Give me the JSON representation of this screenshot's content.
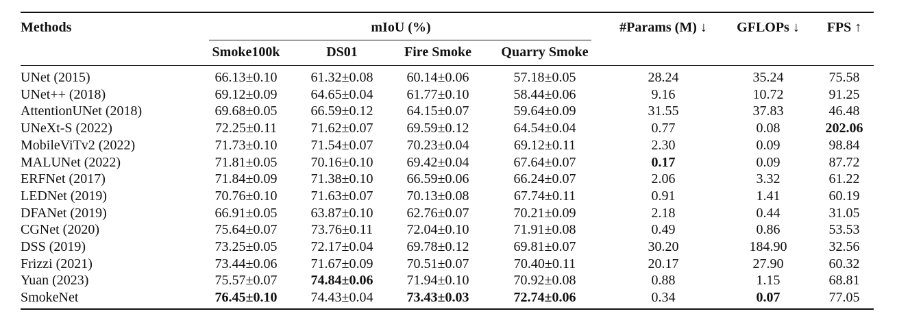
{
  "table": {
    "headers": {
      "methods": "Methods",
      "miou": "mIoU (%)",
      "params": "#Params (M) ↓",
      "gflops": "GFLOPs ↓",
      "fps": "FPS ↑",
      "smoke100k": "Smoke100k",
      "ds01": "DS01",
      "firesmoke": "Fire Smoke",
      "quarrysmoke": "Quarry Smoke"
    },
    "rows": [
      {
        "method": "UNet (2015)",
        "smoke100k": "66.13±0.10",
        "ds01": "61.32±0.08",
        "firesmoke": "60.14±0.06",
        "quarrysmoke": "57.18±0.05",
        "params": "28.24",
        "gflops": "35.24",
        "fps": "75.58"
      },
      {
        "method": "UNet++ (2018)",
        "smoke100k": "69.12±0.09",
        "ds01": "64.65±0.04",
        "firesmoke": "61.77±0.10",
        "quarrysmoke": "58.44±0.06",
        "params": "9.16",
        "gflops": "10.72",
        "fps": "91.25"
      },
      {
        "method": "AttentionUNet (2018)",
        "smoke100k": "69.68±0.05",
        "ds01": "66.59±0.12",
        "firesmoke": "64.15±0.07",
        "quarrysmoke": "59.64±0.09",
        "params": "31.55",
        "gflops": "37.83",
        "fps": "46.48"
      },
      {
        "method": "UNeXt-S (2022)",
        "smoke100k": "72.25±0.11",
        "ds01": "71.62±0.07",
        "firesmoke": "69.59±0.12",
        "quarrysmoke": "64.54±0.04",
        "params": "0.77",
        "gflops": "0.08",
        "fps": "202.06",
        "bold": [
          "fps"
        ]
      },
      {
        "method": "MobileViTv2 (2022)",
        "smoke100k": "71.73±0.10",
        "ds01": "71.54±0.07",
        "firesmoke": "70.23±0.04",
        "quarrysmoke": "69.12±0.11",
        "params": "2.30",
        "gflops": "0.09",
        "fps": "98.84"
      },
      {
        "method": "MALUNet (2022)",
        "smoke100k": "71.81±0.05",
        "ds01": "70.16±0.10",
        "firesmoke": "69.42±0.04",
        "quarrysmoke": "67.64±0.07",
        "params": "0.17",
        "gflops": "0.09",
        "fps": "87.72",
        "bold": [
          "params"
        ]
      },
      {
        "method": "ERFNet (2017)",
        "smoke100k": "71.84±0.09",
        "ds01": "71.38±0.10",
        "firesmoke": "66.59±0.06",
        "quarrysmoke": "66.24±0.07",
        "params": "2.06",
        "gflops": "3.32",
        "fps": "61.22"
      },
      {
        "method": "LEDNet (2019)",
        "smoke100k": "70.76±0.10",
        "ds01": "71.63±0.07",
        "firesmoke": "70.13±0.08",
        "quarrysmoke": "67.74±0.11",
        "params": "0.91",
        "gflops": "1.41",
        "fps": "60.19"
      },
      {
        "method": "DFANet (2019)",
        "smoke100k": "66.91±0.05",
        "ds01": "63.87±0.10",
        "firesmoke": "62.76±0.07",
        "quarrysmoke": "70.21±0.09",
        "params": "2.18",
        "gflops": "0.44",
        "fps": "31.05"
      },
      {
        "method": "CGNet (2020)",
        "smoke100k": "75.64±0.07",
        "ds01": "73.76±0.11",
        "firesmoke": "72.04±0.10",
        "quarrysmoke": "71.91±0.08",
        "params": "0.49",
        "gflops": "0.86",
        "fps": "53.53"
      },
      {
        "method": "DSS (2019)",
        "smoke100k": "73.25±0.05",
        "ds01": "72.17±0.04",
        "firesmoke": "69.78±0.12",
        "quarrysmoke": "69.81±0.07",
        "params": "30.20",
        "gflops": "184.90",
        "fps": "32.56"
      },
      {
        "method": "Frizzi (2021)",
        "smoke100k": "73.44±0.06",
        "ds01": "71.67±0.09",
        "firesmoke": "70.51±0.07",
        "quarrysmoke": "70.40±0.11",
        "params": "20.17",
        "gflops": "27.90",
        "fps": "60.32"
      },
      {
        "method": "Yuan (2023)",
        "smoke100k": "75.57±0.07",
        "ds01": "74.84±0.06",
        "firesmoke": "71.94±0.10",
        "quarrysmoke": "70.92±0.08",
        "params": "0.88",
        "gflops": "1.15",
        "fps": "68.81",
        "bold": [
          "ds01"
        ]
      },
      {
        "method": "SmokeNet",
        "smoke100k": "76.45±0.10",
        "ds01": "74.43±0.04",
        "firesmoke": "73.43±0.03",
        "quarrysmoke": "72.74±0.06",
        "params": "0.34",
        "gflops": "0.07",
        "fps": "77.05",
        "bold": [
          "smoke100k",
          "firesmoke",
          "quarrysmoke",
          "gflops"
        ]
      }
    ]
  }
}
